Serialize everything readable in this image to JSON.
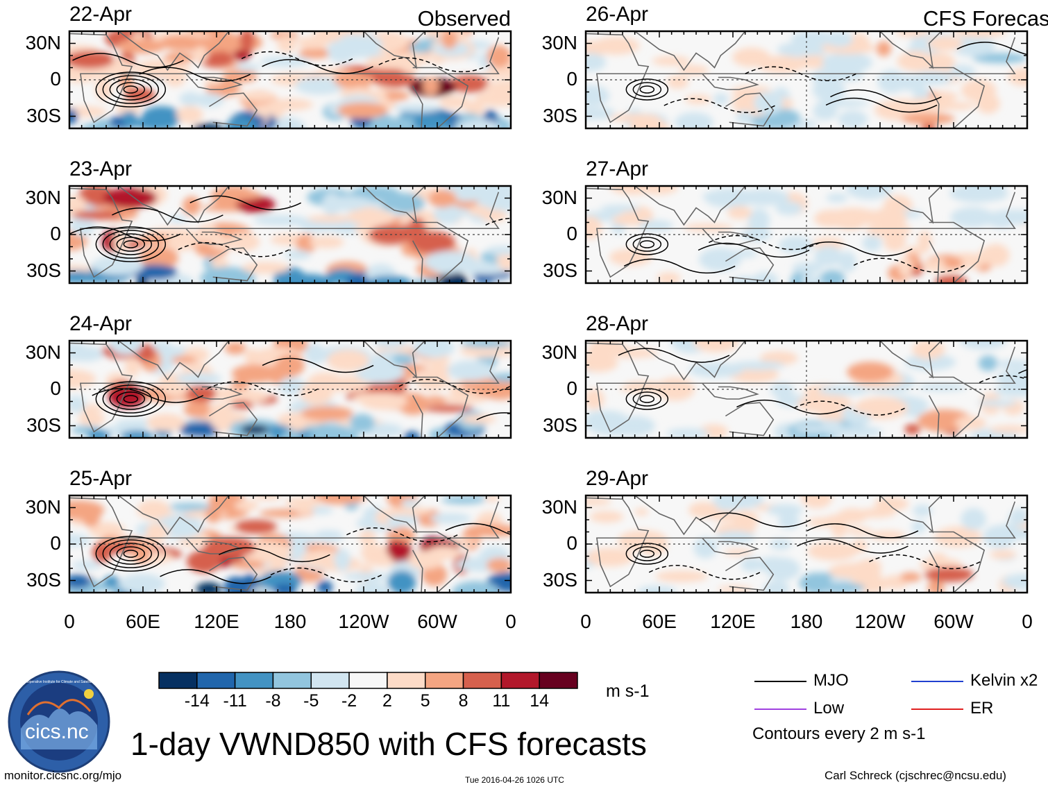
{
  "figure": {
    "title": "1-day VWND850 with CFS forecasts",
    "url": "monitor.cicsnc.org/mjo",
    "timestamp": "Tue 2016-04-26 1026 UTC",
    "author": "Carl Schreck (cjschrec@ncsu.edu)",
    "logo": {
      "text": "cics.nc",
      "ring_text": "Cooperative Institute for Climate and Satellites"
    }
  },
  "chart_data": {
    "type": "heatmap",
    "variable": "VWND850",
    "units": "m s-1",
    "columns": [
      {
        "title": "Observed",
        "dates": [
          "22-Apr",
          "23-Apr",
          "24-Apr",
          "25-Apr"
        ]
      },
      {
        "title": "CFS Forecast",
        "dates": [
          "26-Apr",
          "27-Apr",
          "28-Apr",
          "29-Apr"
        ]
      }
    ],
    "lat_ticks": [
      "30N",
      "0",
      "30S"
    ],
    "lon_ticks": [
      "0",
      "60E",
      "120E",
      "180",
      "120W",
      "60W",
      "0"
    ],
    "lat_range": [
      -40,
      40
    ],
    "lon_range": [
      0,
      360
    ],
    "colorbar": {
      "levels": [
        "-14",
        "-11",
        "-8",
        "-5",
        "-2",
        "2",
        "5",
        "8",
        "11",
        "14"
      ],
      "colors": [
        "#053061",
        "#2166ac",
        "#4393c3",
        "#92c5de",
        "#d1e5f0",
        "#f7f7f7",
        "#fddbc7",
        "#f4a582",
        "#d6604d",
        "#b2182b",
        "#67001f"
      ],
      "units_label": "m s-1"
    },
    "legend": {
      "items": [
        {
          "label": "MJO",
          "color": "#000000"
        },
        {
          "label": "Kelvin x2",
          "color": "#2040d0"
        },
        {
          "label": "Low",
          "color": "#a040e0"
        },
        {
          "label": "ER",
          "color": "#e02020"
        }
      ],
      "note": "Contours every 2 m s-1"
    }
  }
}
